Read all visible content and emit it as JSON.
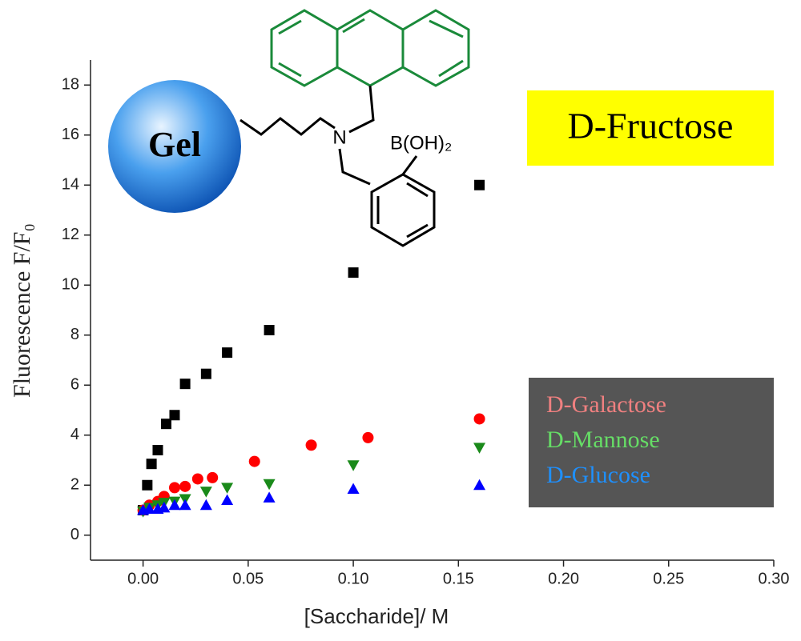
{
  "chart_data": {
    "type": "scatter",
    "xlabel": "[Saccharide]/ M",
    "ylabel": "Fluorescence F/F₀",
    "annotations": [
      "Gel",
      "N",
      "B(OH)₂"
    ],
    "xlim": [
      -0.025,
      0.3
    ],
    "ylim": [
      -1,
      19
    ],
    "xticks": [
      {
        "value": 0,
        "label": "0.00"
      },
      {
        "value": 0.05,
        "label": "0.05"
      },
      {
        "value": 0.1,
        "label": "0.10"
      },
      {
        "value": 0.15,
        "label": "0.15"
      },
      {
        "value": 0.2,
        "label": "0.20"
      },
      {
        "value": 0.25,
        "label": "0.25"
      },
      {
        "value": 0.3,
        "label": "0.30"
      }
    ],
    "yticks": [
      0,
      2,
      4,
      6,
      8,
      10,
      12,
      14,
      16,
      18
    ],
    "grid": false,
    "series": [
      {
        "name": "D-Fructose",
        "color": "#000000",
        "label_color": "#000000",
        "marker": "square",
        "x": [
          0,
          0.002,
          0.004,
          0.007,
          0.011,
          0.015,
          0.02,
          0.03,
          0.04,
          0.06,
          0.1,
          0.16
        ],
        "values": [
          1.0,
          2.0,
          2.85,
          3.4,
          4.45,
          4.8,
          6.05,
          6.45,
          7.3,
          8.2,
          10.5,
          14.0
        ]
      },
      {
        "name": "D-Galactose",
        "color": "#ff0000",
        "label_color": "#f08080",
        "marker": "circle",
        "x": [
          0,
          0.003,
          0.007,
          0.01,
          0.015,
          0.02,
          0.026,
          0.033,
          0.053,
          0.08,
          0.107,
          0.16
        ],
        "values": [
          1.0,
          1.2,
          1.35,
          1.55,
          1.9,
          1.95,
          2.25,
          2.3,
          2.95,
          3.6,
          3.9,
          4.65
        ]
      },
      {
        "name": "D-Mannose",
        "color": "#1a8a1a",
        "label_color": "#66dd66",
        "marker": "triangle-down",
        "x": [
          0,
          0.003,
          0.007,
          0.01,
          0.015,
          0.02,
          0.03,
          0.04,
          0.06,
          0.1,
          0.16
        ],
        "values": [
          0.95,
          1.1,
          1.2,
          1.3,
          1.35,
          1.45,
          1.75,
          1.9,
          2.05,
          2.8,
          3.5
        ]
      },
      {
        "name": "D-Glucose",
        "color": "#0000ff",
        "label_color": "#1e90ff",
        "marker": "triangle-up",
        "x": [
          0,
          0.003,
          0.007,
          0.01,
          0.015,
          0.02,
          0.03,
          0.04,
          0.06,
          0.1,
          0.16
        ],
        "values": [
          1.0,
          1.05,
          1.05,
          1.1,
          1.2,
          1.2,
          1.2,
          1.4,
          1.5,
          1.85,
          2.0
        ]
      }
    ]
  }
}
